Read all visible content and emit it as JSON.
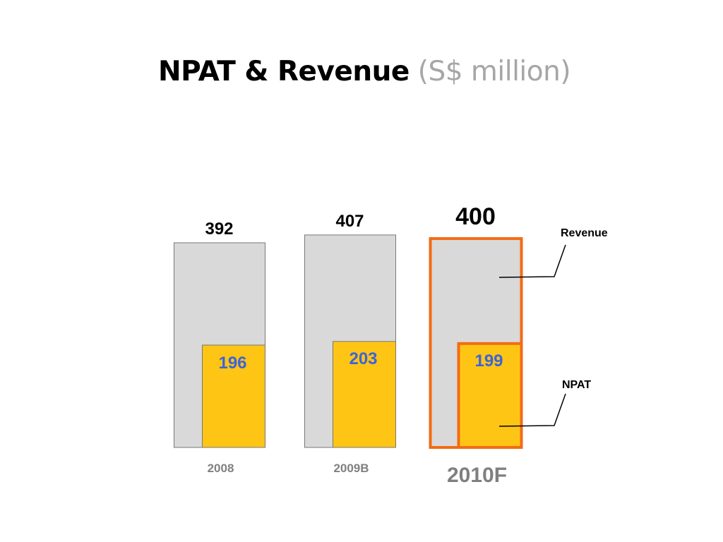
{
  "slide": {
    "title": "NPAT & Revenue",
    "title_unit": "(S$ million)"
  },
  "chart_data": {
    "type": "bar",
    "title": "NPAT & Revenue (S$ million)",
    "categories": [
      "2008",
      "2009B",
      "2010F"
    ],
    "highlight_category": "2010F",
    "series": [
      {
        "name": "Revenue",
        "values": [
          392,
          407,
          400
        ],
        "color": "#d9d9d9"
      },
      {
        "name": "NPAT",
        "values": [
          196,
          203,
          199
        ],
        "color": "#fec515"
      }
    ],
    "value_label_colors": {
      "Revenue": "#000000",
      "NPAT": "#3d64d6"
    },
    "highlight_color": "#f36b14",
    "category_label_color": "#808080",
    "legend": "right, callout labels",
    "grid": false,
    "ylim": [
      0,
      450
    ]
  }
}
